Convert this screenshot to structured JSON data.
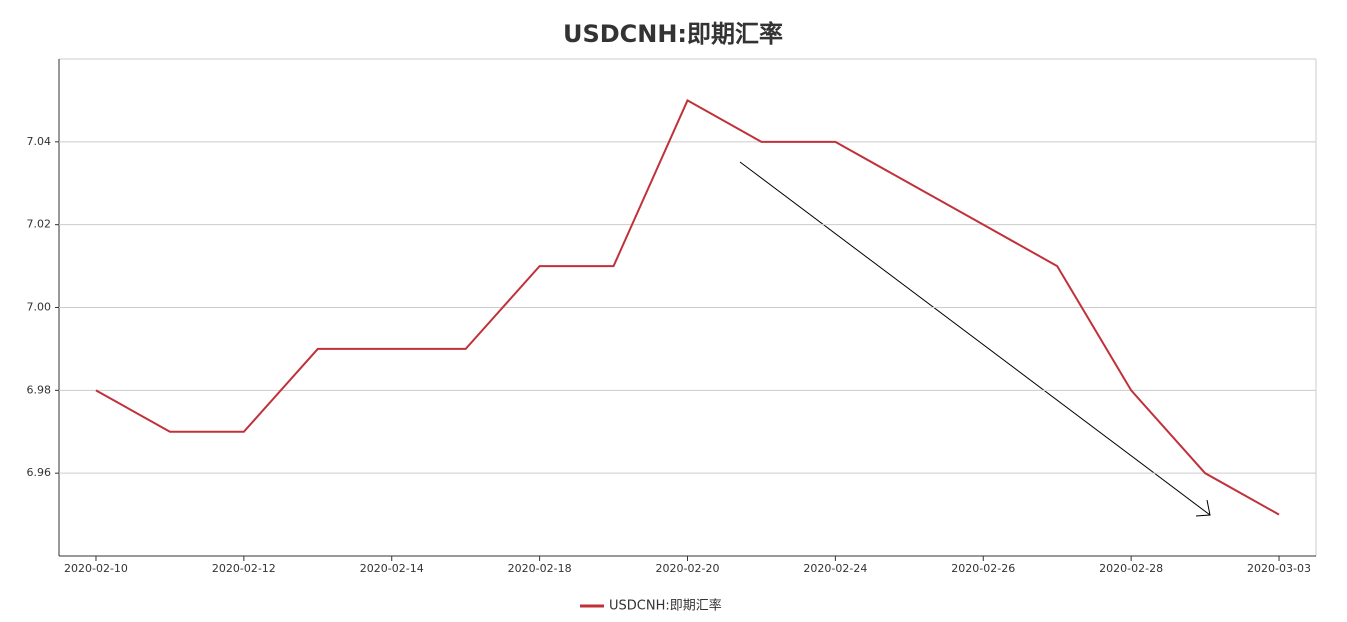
{
  "chart_data": {
    "type": "line",
    "title": "USDCNH:即期汇率",
    "categories": [
      "2020-02-10",
      null,
      "2020-02-12",
      null,
      "2020-02-14",
      null,
      "2020-02-18",
      null,
      "2020-02-20",
      null,
      "2020-02-24",
      null,
      "2020-02-26",
      null,
      "2020-02-28",
      null,
      "2020-03-03"
    ],
    "series": [
      {
        "name": "USDCNH:即期汇率",
        "color": "#c0313a",
        "values": [
          6.98,
          6.97,
          6.97,
          6.99,
          6.99,
          6.99,
          7.01,
          7.01,
          7.05,
          7.04,
          7.04,
          7.03,
          7.02,
          7.01,
          6.98,
          6.96,
          6.95
        ]
      }
    ],
    "ylim": [
      6.94,
      7.06
    ],
    "yticks": [
      6.96,
      6.98,
      {
        "value": 7,
        "label": "7.00"
      },
      7.02,
      7.04
    ],
    "grid": true,
    "legend": "bottom"
  }
}
